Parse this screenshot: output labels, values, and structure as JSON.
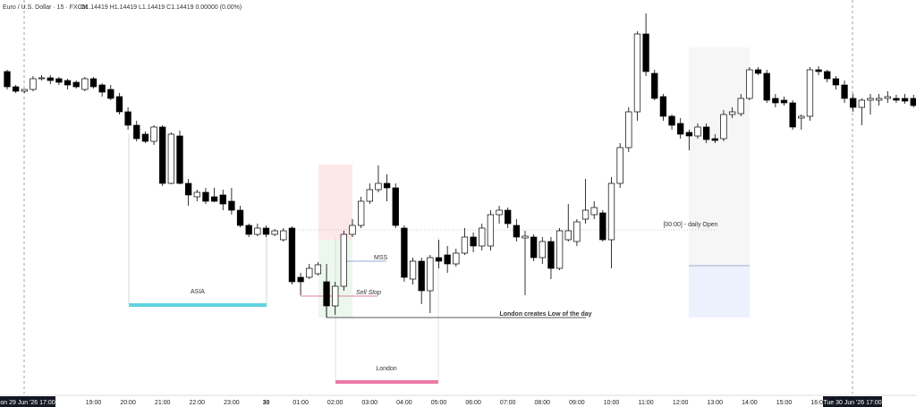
{
  "chart_data": {
    "type": "candlestick",
    "title": "Euro / U.S. Dollar · 15 · FXCM",
    "ohlc_readout": "O1.14419 H1.14419 L1.14419 C1.14419 0.00000 (0.00%)",
    "ylim": [
      1.1426,
      1.147
    ],
    "up_color": "#ffffff",
    "down_color": "#000000",
    "categories": [
      null,
      null,
      null,
      null,
      null,
      null,
      null,
      null,
      null,
      null,
      "19:00",
      null,
      null,
      null,
      "20:00",
      null,
      null,
      null,
      "21:00",
      null,
      null,
      null,
      "22:00",
      null,
      null,
      null,
      "23:00",
      null,
      null,
      null,
      "30",
      null,
      null,
      null,
      "01:00",
      null,
      null,
      null,
      "02:00",
      null,
      null,
      null,
      "03:00",
      null,
      null,
      null,
      "04:00",
      null,
      null,
      null,
      "05:00",
      null,
      null,
      null,
      "06:00",
      null,
      null,
      null,
      "07:00",
      null,
      null,
      null,
      "08:00",
      null,
      null,
      null,
      "09:00",
      null,
      null,
      null,
      "10:00",
      null,
      null,
      null,
      "11:00",
      null,
      null,
      null,
      "12:00",
      null,
      null,
      null,
      "13:00",
      null,
      null,
      null,
      "14:00",
      null,
      null,
      null,
      "15:00",
      null,
      null,
      null,
      "16:00",
      null,
      null,
      null,
      null,
      null,
      null,
      null,
      null,
      null,
      null,
      null
    ],
    "crosshair_labels": [
      "on 29 Jun '26  17:00",
      "Tue 30 Jun '26  17:00"
    ],
    "candles": [
      [
        1.1462,
        1.14622,
        1.146,
        1.14603
      ],
      [
        1.14603,
        1.14605,
        1.14596,
        1.14598
      ],
      [
        1.14598,
        1.146,
        1.14596,
        1.146
      ],
      [
        1.146,
        1.14615,
        1.14598,
        1.14612
      ],
      [
        1.14612,
        1.14616,
        1.1461,
        1.14613
      ],
      [
        1.14613,
        1.14616,
        1.14606,
        1.1461
      ],
      [
        1.14612,
        1.14614,
        1.14605,
        1.14608
      ],
      [
        1.1461,
        1.14612,
        1.146,
        1.14605
      ],
      [
        1.14608,
        1.1461,
        1.14601,
        1.14603
      ],
      [
        1.146,
        1.14614,
        1.14598,
        1.14612
      ],
      [
        1.14612,
        1.14614,
        1.14601,
        1.14603
      ],
      [
        1.14605,
        1.14607,
        1.14592,
        1.14597
      ],
      [
        1.146,
        1.14605,
        1.14588,
        1.1459
      ],
      [
        1.14592,
        1.14596,
        1.14572,
        1.14575
      ],
      [
        1.14575,
        1.1458,
        1.14555,
        1.1456
      ],
      [
        1.1456,
        1.14565,
        1.14542,
        1.14545
      ],
      [
        1.1455,
        1.14553,
        1.1454,
        1.14542
      ],
      [
        1.14542,
        1.1456,
        1.14538,
        1.14558
      ],
      [
        1.14558,
        1.1456,
        1.14492,
        1.14495
      ],
      [
        1.14495,
        1.14552,
        1.14494,
        1.1455
      ],
      [
        1.14548,
        1.14554,
        1.14494,
        1.14495
      ],
      [
        1.14495,
        1.145,
        1.1447,
        1.14482
      ],
      [
        1.1448,
        1.14488,
        1.14475,
        1.14485
      ],
      [
        1.14485,
        1.1449,
        1.14472,
        1.14475
      ],
      [
        1.1448,
        1.1449,
        1.14474,
        1.14475
      ],
      [
        1.14482,
        1.14488,
        1.14465,
        1.14472
      ],
      [
        1.14475,
        1.1449,
        1.1446,
        1.14465
      ],
      [
        1.14465,
        1.1447,
        1.14446,
        1.14448
      ],
      [
        1.14448,
        1.1445,
        1.14435,
        1.14438
      ],
      [
        1.14438,
        1.1445,
        1.14436,
        1.14445
      ],
      [
        1.14445,
        1.14448,
        1.14435,
        1.14438
      ],
      [
        1.14438,
        1.14444,
        1.14436,
        1.14442
      ],
      [
        1.14432,
        1.14445,
        1.1443,
        1.14442
      ],
      [
        1.14445,
        1.14447,
        1.14382,
        1.14385
      ],
      [
        1.1439,
        1.14395,
        1.1437,
        1.14385
      ],
      [
        1.1439,
        1.14405,
        1.14388,
        1.144
      ],
      [
        1.14394,
        1.14407,
        1.14392,
        1.14404
      ],
      [
        1.14385,
        1.14405,
        1.14345,
        1.14358
      ],
      [
        1.14358,
        1.14385,
        1.14348,
        1.1438
      ],
      [
        1.1438,
        1.14442,
        1.14375,
        1.14438
      ],
      [
        1.14438,
        1.14455,
        1.14435,
        1.14448
      ],
      [
        1.14448,
        1.1448,
        1.14445,
        1.14475
      ],
      [
        1.14475,
        1.14495,
        1.14472,
        1.14488
      ],
      [
        1.14488,
        1.14515,
        1.14485,
        1.14495
      ],
      [
        1.14495,
        1.14505,
        1.14475,
        1.1449
      ],
      [
        1.1449,
        1.14495,
        1.14445,
        1.14448
      ],
      [
        1.14445,
        1.14448,
        1.14385,
        1.1439
      ],
      [
        1.14388,
        1.14412,
        1.14382,
        1.14408
      ],
      [
        1.14408,
        1.14412,
        1.1436,
        1.14375
      ],
      [
        1.14375,
        1.14415,
        1.1435,
        1.14412
      ],
      [
        1.14412,
        1.14432,
        1.144,
        1.14408
      ],
      [
        1.14415,
        1.14425,
        1.14395,
        1.14405
      ],
      [
        1.14405,
        1.14422,
        1.14402,
        1.14417
      ],
      [
        1.14417,
        1.14445,
        1.14415,
        1.14435
      ],
      [
        1.14435,
        1.1444,
        1.14418,
        1.14425
      ],
      [
        1.14425,
        1.1445,
        1.1442,
        1.14445
      ],
      [
        1.14425,
        1.14465,
        1.1442,
        1.1446
      ],
      [
        1.1446,
        1.1447,
        1.1445,
        1.14465
      ],
      [
        1.14465,
        1.14468,
        1.14445,
        1.1445
      ],
      [
        1.14448,
        1.14455,
        1.1443,
        1.14435
      ],
      [
        1.14434,
        1.14442,
        1.1437,
        1.14436
      ],
      [
        1.14435,
        1.14438,
        1.14408,
        1.14412
      ],
      [
        1.14412,
        1.14435,
        1.14405,
        1.1443
      ],
      [
        1.1443,
        1.14435,
        1.14388,
        1.144
      ],
      [
        1.144,
        1.14445,
        1.14398,
        1.14442
      ],
      [
        1.14432,
        1.14472,
        1.1443,
        1.14442
      ],
      [
        1.1443,
        1.14455,
        1.14425,
        1.14452
      ],
      [
        1.14455,
        1.145,
        1.1445,
        1.14465
      ],
      [
        1.1446,
        1.14475,
        1.14455,
        1.14468
      ],
      [
        1.14462,
        1.14465,
        1.1443,
        1.14432
      ],
      [
        1.14432,
        1.14502,
        1.144,
        1.14495
      ],
      [
        1.14495,
        1.1454,
        1.1449,
        1.14535
      ],
      [
        1.14535,
        1.1458,
        1.1453,
        1.14575
      ],
      [
        1.14575,
        1.14665,
        1.14565,
        1.14662
      ],
      [
        1.14662,
        1.14685,
        1.14615,
        1.1462
      ],
      [
        1.14618,
        1.14622,
        1.14588,
        1.1459
      ],
      [
        1.14592,
        1.14595,
        1.14565,
        1.1457
      ],
      [
        1.1457,
        1.14572,
        1.14555,
        1.1456
      ],
      [
        1.14562,
        1.14568,
        1.14545,
        1.1455
      ],
      [
        1.14552,
        1.14555,
        1.14532,
        1.14548
      ],
      [
        1.14548,
        1.14562,
        1.14545,
        1.14558
      ],
      [
        1.14558,
        1.14562,
        1.1454,
        1.14544
      ],
      [
        1.14545,
        1.1455,
        1.1454,
        1.14543
      ],
      [
        1.14545,
        1.14577,
        1.14542,
        1.14572
      ],
      [
        1.14572,
        1.1458,
        1.14568,
        1.14575
      ],
      [
        1.14573,
        1.14595,
        1.1457,
        1.1459
      ],
      [
        1.1459,
        1.14625,
        1.14588,
        1.14622
      ],
      [
        1.14622,
        1.14625,
        1.14616,
        1.14618
      ],
      [
        1.14618,
        1.14622,
        1.14585,
        1.14588
      ],
      [
        1.1459,
        1.14595,
        1.1458,
        1.14585
      ],
      [
        1.14588,
        1.14592,
        1.14582,
        1.14585
      ],
      [
        1.14585,
        1.14588,
        1.14555,
        1.14558
      ],
      [
        1.14568,
        1.14572,
        1.14555,
        1.1457
      ],
      [
        1.1457,
        1.14625,
        1.14565,
        1.14622
      ],
      [
        1.14622,
        1.14626,
        1.14616,
        1.1462
      ],
      [
        1.1462,
        1.14622,
        1.14608,
        1.14612
      ],
      [
        1.14612,
        1.14615,
        1.146,
        1.14605
      ],
      [
        1.14605,
        1.1461,
        1.14585,
        1.1459
      ],
      [
        1.1459,
        1.14595,
        1.14575,
        1.1458
      ],
      [
        1.1458,
        1.1459,
        1.1456,
        1.14588
      ],
      [
        1.14588,
        1.14595,
        1.14572,
        1.1459
      ],
      [
        1.14588,
        1.14595,
        1.14582,
        1.1459
      ],
      [
        1.1459,
        1.14598,
        1.14585,
        1.14592
      ],
      [
        1.1459,
        1.14594,
        1.14585,
        1.14588
      ],
      [
        1.1459,
        1.14595,
        1.14584,
        1.14587
      ],
      [
        1.1459,
        1.14594,
        1.1458,
        1.14582
      ]
    ],
    "annotations": [
      "ASIA",
      "London",
      "MSS",
      "Sell Stop",
      "London creates Low of the day",
      "[00:00] - daily Open"
    ]
  }
}
